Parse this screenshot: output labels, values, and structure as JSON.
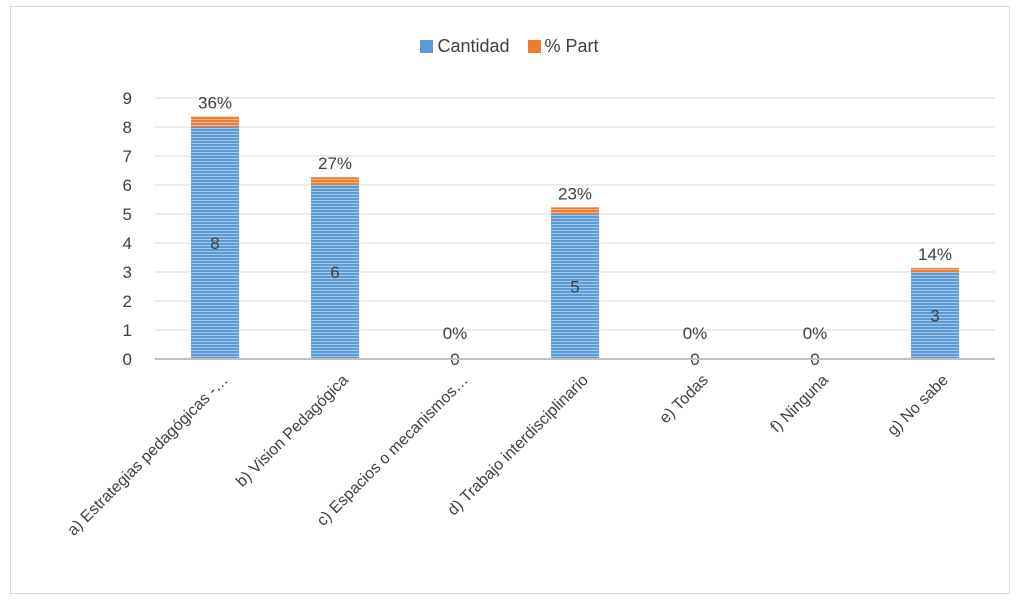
{
  "chart_data": {
    "type": "bar",
    "stacked": true,
    "categories": [
      "a) Estrategias pedagógicas -…",
      "b) Vision Pedagógica",
      "c) Espacios o mecanismos…",
      "d) Trabajo interdisciplinario",
      "e) Todas",
      "f) Ninguna",
      "g) No sabe"
    ],
    "series": [
      {
        "name": "Cantidad",
        "values": [
          8,
          6,
          0,
          5,
          0,
          0,
          3
        ],
        "labels": [
          "8",
          "6",
          "0",
          "5",
          "0",
          "0",
          "3"
        ],
        "color": "#5b9bd5"
      },
      {
        "name": "% Part",
        "values": [
          0.36,
          0.27,
          0,
          0.23,
          0,
          0,
          0.14
        ],
        "labels": [
          "36%",
          "27%",
          "0%",
          "23%",
          "0%",
          "0%",
          "14%"
        ],
        "color": "#ed7d31"
      }
    ],
    "ylim": [
      0,
      9
    ],
    "yticks": [
      0,
      1,
      2,
      3,
      4,
      5,
      6,
      7,
      8,
      9
    ],
    "grid": true,
    "legend": "top-center"
  }
}
